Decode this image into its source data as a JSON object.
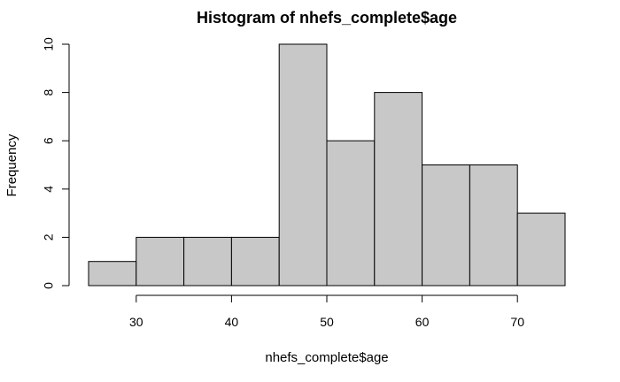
{
  "chart_data": {
    "type": "bar",
    "title": "Histogram of nhefs_complete$age",
    "xlabel": "nhefs_complete$age",
    "ylabel": "Frequency",
    "bins": [
      {
        "start": 25,
        "end": 30,
        "count": 1
      },
      {
        "start": 30,
        "end": 35,
        "count": 2
      },
      {
        "start": 35,
        "end": 40,
        "count": 2
      },
      {
        "start": 40,
        "end": 45,
        "count": 2
      },
      {
        "start": 45,
        "end": 50,
        "count": 10
      },
      {
        "start": 50,
        "end": 55,
        "count": 6
      },
      {
        "start": 55,
        "end": 60,
        "count": 8
      },
      {
        "start": 60,
        "end": 65,
        "count": 5
      },
      {
        "start": 65,
        "end": 70,
        "count": 5
      },
      {
        "start": 70,
        "end": 75,
        "count": 3
      }
    ],
    "xlim": [
      25,
      75
    ],
    "ylim": [
      0,
      10
    ],
    "x_ticks": [
      30,
      40,
      50,
      60,
      70
    ],
    "y_ticks": [
      0,
      2,
      4,
      6,
      8,
      10
    ],
    "bar_color": "#c8c8c8",
    "grid": false,
    "legend": "none"
  }
}
